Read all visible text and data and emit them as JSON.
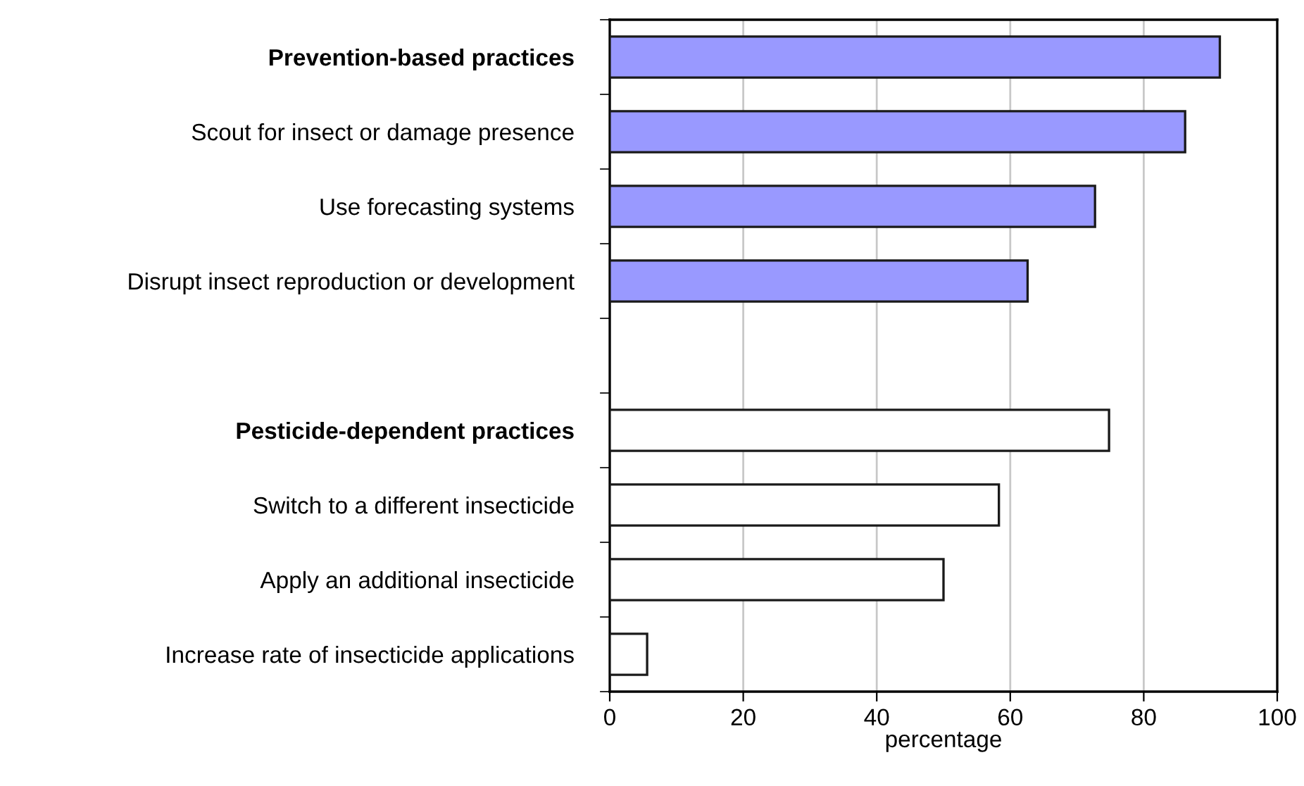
{
  "chart_data": {
    "type": "bar",
    "orientation": "horizontal",
    "xlabel": "percentage",
    "categories": [
      "Prevention-based practices",
      "Scout for insect or damage presence",
      "Use forecasting systems",
      "Disrupt insect reproduction or development",
      null,
      "Pesticide-dependent practices",
      "Switch to a different insecticide",
      "Apply an additional insecticide",
      "Increase rate of insecticide applications"
    ],
    "series": [
      {
        "color": "#9999ff",
        "values": [
          91.4,
          86.2,
          72.7,
          62.6,
          null,
          null,
          null,
          null,
          null
        ]
      },
      {
        "color": "#ffffff",
        "values": [
          null,
          null,
          null,
          null,
          null,
          74.8,
          58.3,
          50.0,
          5.6
        ]
      }
    ],
    "xlim": [
      0,
      100
    ],
    "xticks": [
      0,
      20,
      40,
      60,
      80,
      100
    ],
    "grid": "x",
    "legend": false
  }
}
